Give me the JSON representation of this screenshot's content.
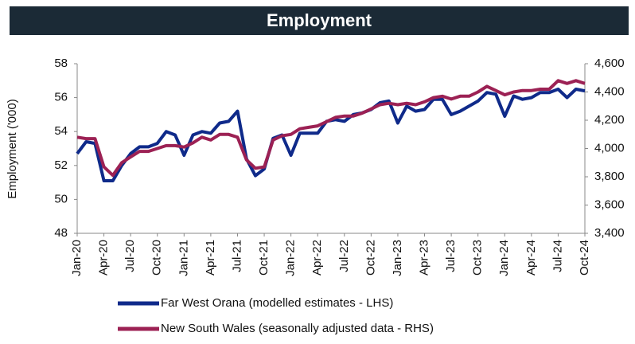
{
  "chart_data": {
    "type": "line",
    "title": "Employment",
    "y_label": "Employment ('000)",
    "categories": [
      "Jan-20",
      null,
      null,
      "Apr-20",
      null,
      null,
      "Jul-20",
      null,
      null,
      "Oct-20",
      null,
      null,
      "Jan-21",
      null,
      null,
      "Apr-21",
      null,
      null,
      "Jul-21",
      null,
      null,
      "Oct-21",
      null,
      null,
      "Jan-22",
      null,
      null,
      "Apr-22",
      null,
      null,
      "Jul-22",
      null,
      null,
      "Oct-22",
      null,
      null,
      "Jan-23",
      null,
      null,
      "Apr-23",
      null,
      null,
      "Jul-23",
      null,
      null,
      "Oct-23",
      null,
      null,
      "Jan-24",
      null,
      null,
      "Apr-24",
      null,
      null,
      "Jul-24",
      null,
      null,
      "Oct-24"
    ],
    "series": [
      {
        "name": "Far West Orana (modelled estimates - LHS)",
        "color": "#0f2a8a",
        "axis": "y",
        "values": [
          52.7,
          53.4,
          53.3,
          51.1,
          51.1,
          52.0,
          52.7,
          53.1,
          53.1,
          53.3,
          54.0,
          53.8,
          52.6,
          53.8,
          54.0,
          53.9,
          54.5,
          54.6,
          55.2,
          52.4,
          51.4,
          51.8,
          53.6,
          53.8,
          52.6,
          53.9,
          53.9,
          53.9,
          54.6,
          54.7,
          54.6,
          55.0,
          55.1,
          55.3,
          55.7,
          55.8,
          54.5,
          55.5,
          55.2,
          55.3,
          55.9,
          55.9,
          55.0,
          55.2,
          55.5,
          55.8,
          56.3,
          56.2,
          54.9,
          56.1,
          55.9,
          56.0,
          56.3,
          56.3,
          56.5,
          56.0,
          56.5,
          56.4
        ]
      },
      {
        "name": "New South Wales (seasonally adjusted data - RHS)",
        "color": "#9c2154",
        "axis": "y2",
        "values": [
          4080,
          4070,
          4070,
          3870,
          3810,
          3900,
          3940,
          3980,
          3980,
          4000,
          4020,
          4020,
          4010,
          4040,
          4080,
          4060,
          4100,
          4100,
          4080,
          3920,
          3860,
          3870,
          4060,
          4090,
          4100,
          4140,
          4150,
          4160,
          4190,
          4220,
          4230,
          4230,
          4250,
          4280,
          4310,
          4320,
          4310,
          4320,
          4310,
          4330,
          4360,
          4370,
          4350,
          4370,
          4370,
          4400,
          4440,
          4410,
          4380,
          4400,
          4410,
          4410,
          4420,
          4420,
          4480,
          4460,
          4480,
          4460
        ]
      }
    ],
    "ylim": [
      48,
      58
    ],
    "yticks": [
      48,
      50,
      52,
      54,
      56,
      58
    ],
    "y2lim": [
      3400,
      4600
    ],
    "y2ticks": [
      {
        "value": 3400,
        "label": "3,400"
      },
      {
        "value": 3600,
        "label": "3,600"
      },
      {
        "value": 3800,
        "label": "3,800"
      },
      {
        "value": 4000,
        "label": "4,000"
      },
      {
        "value": 4200,
        "label": "4,200"
      },
      {
        "value": 4400,
        "label": "4,400"
      },
      {
        "value": 4600,
        "label": "4,600"
      }
    ],
    "grid": false,
    "legend": "bottom"
  }
}
